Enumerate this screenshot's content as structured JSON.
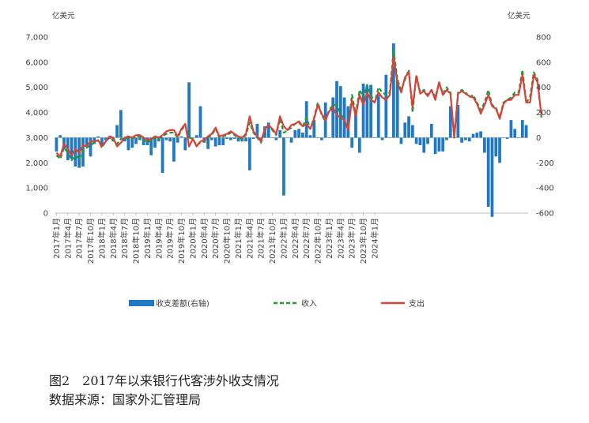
{
  "figure": {
    "caption_line1": "图2　2017年以来银行代客涉外收支情况",
    "caption_line2": "数据来源：国家外汇管理局"
  },
  "chart_data": {
    "type": "bar+line",
    "left_axis": {
      "unit": "亿美元",
      "ylim": [
        0,
        7000
      ],
      "ticks": [
        0,
        1000,
        2000,
        3000,
        4000,
        5000,
        6000,
        7000
      ],
      "tick_labels": [
        "0",
        "1,000",
        "2,000",
        "3,000",
        "4,000",
        "5,000",
        "6,000",
        "7,000"
      ]
    },
    "right_axis": {
      "unit": "亿美元",
      "ylim": [
        -600,
        800
      ],
      "ticks": [
        -600,
        -400,
        -200,
        0,
        200,
        400,
        600,
        800
      ],
      "tick_labels": [
        "-600",
        "-400",
        "-200",
        "0",
        "200",
        "400",
        "600",
        "800"
      ]
    },
    "x_tick_labels": [
      "2017年1月",
      "2017年4月",
      "2017年7月",
      "2017年10月",
      "2018年1月",
      "2018年4月",
      "2018年7月",
      "2018年10月",
      "2019年1月",
      "2019年4月",
      "2019年7月",
      "2019年10月",
      "2020年1月",
      "2020年4月",
      "2020年7月",
      "2020年10月",
      "2021年1月",
      "2021年4月",
      "2021年7月",
      "2021年10月",
      "2022年1月",
      "2022年4月",
      "2022年7月",
      "2022年10月",
      "2023年1月",
      "2023年4月",
      "2023年7月",
      "2023年10月",
      "2024年1月"
    ],
    "legend": [
      "收支差额(右轴)",
      "收入",
      "支出"
    ],
    "colors": {
      "balance": "#1f78c3",
      "income": "#1e9a3a",
      "expenditure": "#d9423a"
    },
    "series": [
      {
        "name": "收支差额(右轴)",
        "axis": "right",
        "type": "bar",
        "values": [
          -110,
          20,
          -90,
          -180,
          -170,
          -230,
          -240,
          -230,
          -60,
          -150,
          -50,
          10,
          -60,
          -20,
          -10,
          -30,
          100,
          220,
          -30,
          -100,
          -80,
          -50,
          -20,
          -60,
          -60,
          -140,
          -80,
          -30,
          -280,
          -20,
          -30,
          -190,
          -40,
          10,
          -100,
          440,
          0,
          20,
          250,
          -40,
          -90,
          -20,
          -70,
          -60,
          -60,
          -10,
          -20,
          -10,
          -30,
          -30,
          -30,
          -260,
          -10,
          110,
          -30,
          90,
          120,
          0,
          -20,
          60,
          -460,
          0,
          -40,
          60,
          70,
          40,
          290,
          20,
          140,
          0,
          -20,
          280,
          0,
          320,
          450,
          410,
          320,
          250,
          -80,
          190,
          -120,
          430,
          410,
          420,
          0,
          340,
          -20,
          500,
          0,
          750,
          460,
          -50,
          120,
          170,
          100,
          -50,
          -60,
          -120,
          -50,
          110,
          -130,
          -110,
          -110,
          -20,
          250,
          0,
          260,
          -40,
          -20,
          -30,
          30,
          40,
          50,
          -120,
          -550,
          -630,
          -150,
          -200,
          0,
          -10,
          140,
          70,
          0,
          140,
          100
        ]
      },
      {
        "name": "收入",
        "axis": "left",
        "type": "line",
        "values": [
          2300,
          2150,
          2600,
          2400,
          2100,
          2300,
          2150,
          2500,
          2600,
          2700,
          2800,
          2900,
          2600,
          2850,
          3000,
          2900,
          2750,
          2950,
          2950,
          3000,
          2950,
          3050,
          3050,
          2900,
          2800,
          2900,
          3000,
          2950,
          3050,
          3150,
          3200,
          3200,
          3000,
          3300,
          3500,
          3000,
          2950,
          2700,
          2800,
          2850,
          3000,
          3100,
          3350,
          3000,
          3050,
          3100,
          3200,
          3100,
          3000,
          2950,
          3100,
          3600,
          3200,
          3000,
          2800,
          3300,
          3500,
          3300,
          3100,
          3750,
          3200,
          3300,
          3400,
          3550,
          3600,
          3450,
          3800,
          3350,
          3800,
          4400,
          3900,
          3650,
          4100,
          4300,
          4300,
          3950,
          3700,
          3350,
          4700,
          3950,
          4900,
          4600,
          5100,
          4700,
          4400,
          5000,
          4800,
          4700,
          4800,
          6500,
          5300,
          4900,
          5300,
          5700,
          4000,
          5500,
          4800,
          4900,
          4700,
          4900,
          4600,
          5200,
          4750,
          5000,
          4800,
          3000,
          4800,
          4900,
          4800,
          4600,
          4700,
          4400,
          4100,
          4400,
          4900,
          4300,
          4200,
          3800,
          4400,
          4500,
          4600,
          4800,
          4800,
          5700,
          4400,
          4600,
          5600,
          5300,
          3800
        ]
      },
      {
        "name": "支出",
        "axis": "left",
        "type": "line",
        "values": [
          2400,
          2250,
          2750,
          2550,
          2300,
          2550,
          2400,
          2700,
          2650,
          2850,
          2850,
          2900,
          2650,
          2850,
          3050,
          3000,
          2650,
          2800,
          3000,
          3050,
          3000,
          3100,
          3100,
          3000,
          2900,
          2950,
          3050,
          3000,
          3100,
          3250,
          3300,
          3300,
          3050,
          3350,
          3550,
          2650,
          2950,
          2650,
          2850,
          2900,
          3050,
          3150,
          3400,
          3050,
          3100,
          3150,
          3250,
          3150,
          3050,
          3000,
          3150,
          3850,
          3250,
          3050,
          2850,
          3350,
          3500,
          3350,
          3150,
          3850,
          3450,
          3300,
          3500,
          3550,
          3650,
          3450,
          3550,
          3350,
          3750,
          4300,
          3950,
          3700,
          4050,
          4200,
          3900,
          3800,
          3700,
          3300,
          4500,
          3850,
          4700,
          4300,
          4800,
          4500,
          4400,
          4800,
          4600,
          4500,
          4700,
          6200,
          5200,
          4800,
          5400,
          5600,
          4200,
          5450,
          4750,
          4850,
          4650,
          4900,
          4500,
          5200,
          4700,
          4900,
          4750,
          3000,
          4750,
          4850,
          4750,
          4650,
          4600,
          4350,
          3950,
          4300,
          4700,
          4250,
          4150,
          3750,
          4350,
          4500,
          4500,
          4700,
          4700,
          5500,
          4400,
          4400,
          5500,
          5200,
          3900
        ]
      }
    ]
  }
}
